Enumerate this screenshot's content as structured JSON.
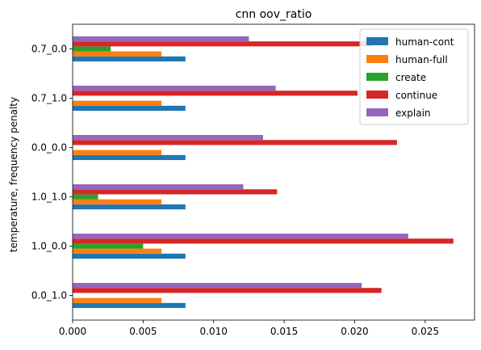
{
  "chart_data": {
    "type": "bar",
    "orientation": "horizontal",
    "title": "cnn oov_ratio",
    "xlabel": "",
    "ylabel": "temperature, frequency penalty",
    "categories": [
      "0.0_1.0",
      "1.0_0.0",
      "1.0_1.0",
      "0.0_0.0",
      "0.7_1.0",
      "0.7_0.0"
    ],
    "xlim": [
      0,
      0.0285
    ],
    "xticks": [
      0.0,
      0.005,
      0.01,
      0.015,
      0.02,
      0.025
    ],
    "xtick_labels": [
      "0.000",
      "0.005",
      "0.010",
      "0.015",
      "0.020",
      "0.025"
    ],
    "grid": false,
    "legend_position": "top-right",
    "series": [
      {
        "name": "human-cont",
        "color": "#1f77b4",
        "values": [
          0.008,
          0.008,
          0.008,
          0.008,
          0.008,
          0.008
        ]
      },
      {
        "name": "human-full",
        "color": "#ff7f0e",
        "values": [
          0.0063,
          0.0063,
          0.0063,
          0.0063,
          0.0063,
          0.0063
        ]
      },
      {
        "name": "create",
        "color": "#2ca02c",
        "values": [
          0.0,
          0.005,
          0.0018,
          0.0,
          0.0,
          0.0027
        ]
      },
      {
        "name": "continue",
        "color": "#d62728",
        "values": [
          0.0219,
          0.027,
          0.0145,
          0.023,
          0.0202,
          0.0213
        ]
      },
      {
        "name": "explain",
        "color": "#9467bd",
        "values": [
          0.0205,
          0.0238,
          0.0121,
          0.0135,
          0.0144,
          0.0125
        ]
      }
    ]
  }
}
